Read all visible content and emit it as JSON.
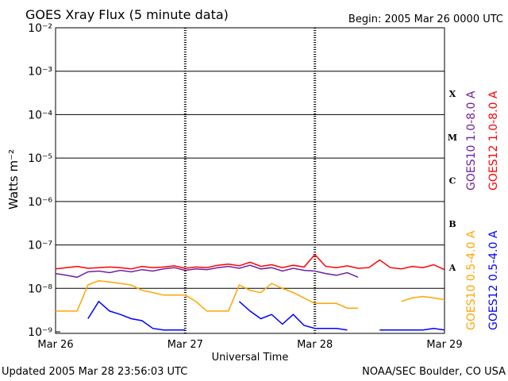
{
  "chart_data": {
    "type": "line",
    "title": "GOES Xray Flux (5 minute data)",
    "subtitle": "Begin:  2005 Mar 26 0000 UTC",
    "x_label": "Universal Time",
    "y_label": "Watts m⁻²",
    "footer_left": "Updated 2005 Mar 28 23:56:03 UTC",
    "footer_right": "NOAA/SEC Boulder, CO USA",
    "log_y": true,
    "grid": true,
    "flare_classes": [
      "A",
      "B",
      "C",
      "M",
      "X"
    ],
    "xlim": [
      0,
      72
    ],
    "xticks": [
      {
        "value": 0,
        "label": "Mar 26"
      },
      {
        "value": 24,
        "label": "Mar 27"
      },
      {
        "value": 48,
        "label": "Mar 28"
      },
      {
        "value": 72,
        "label": "Mar 29"
      }
    ],
    "ylim": [
      1e-09,
      0.01
    ],
    "yticks": [
      {
        "value": 1e-09,
        "label": "10⁻⁹"
      },
      {
        "value": 1e-08,
        "label": "10⁻⁸"
      },
      {
        "value": 1e-07,
        "label": "10⁻⁷"
      },
      {
        "value": 1e-06,
        "label": "10⁻⁶"
      },
      {
        "value": 1e-05,
        "label": "10⁻⁵"
      },
      {
        "value": 0.0001,
        "label": "10⁻⁴"
      },
      {
        "value": 0.001,
        "label": "10⁻³"
      },
      {
        "value": 0.01,
        "label": "10⁻²"
      }
    ],
    "x": [
      0,
      2,
      4,
      6,
      8,
      10,
      12,
      14,
      16,
      18,
      20,
      22,
      24,
      26,
      28,
      30,
      32,
      34,
      36,
      38,
      40,
      42,
      44,
      46,
      48,
      50,
      52,
      54,
      56,
      58,
      60,
      62,
      64,
      66,
      68,
      70,
      72
    ],
    "series": [
      {
        "name": "GOES10 1.0-8.0 A",
        "color": "#7020a0",
        "values": [
          2.2e-08,
          2e-08,
          1.8e-08,
          2.4e-08,
          2.5e-08,
          2.3e-08,
          2.6e-08,
          2.4e-08,
          2.7e-08,
          2.5e-08,
          2.8e-08,
          3e-08,
          2.6e-08,
          2.8e-08,
          2.7e-08,
          3e-08,
          3.2e-08,
          2.9e-08,
          3.4e-08,
          2.8e-08,
          3e-08,
          2.5e-08,
          2.9e-08,
          2.6e-08,
          2.5e-08,
          2.2e-08,
          2e-08,
          2.3e-08,
          1.8e-08,
          null,
          null,
          null,
          null,
          null,
          null,
          null,
          null
        ]
      },
      {
        "name": "GOES12 1.0-8.0 A",
        "color": "#ff0000",
        "values": [
          2.8e-08,
          3e-08,
          3.2e-08,
          2.9e-08,
          3e-08,
          3.1e-08,
          3e-08,
          2.8e-08,
          3.2e-08,
          3e-08,
          3.1e-08,
          3.3e-08,
          2.9e-08,
          3.1e-08,
          3e-08,
          3.4e-08,
          3.6e-08,
          3.3e-08,
          4e-08,
          3.2e-08,
          3.5e-08,
          3e-08,
          3.4e-08,
          3.1e-08,
          6e-08,
          3.2e-08,
          3e-08,
          3.3e-08,
          2.9e-08,
          3e-08,
          4.5e-08,
          3e-08,
          2.8e-08,
          3.2e-08,
          3e-08,
          3.5e-08,
          2.7e-08
        ]
      },
      {
        "name": "GOES10 0.5-4.0 A",
        "color": "#ffa500",
        "values": [
          3e-09,
          3e-09,
          3e-09,
          1.2e-08,
          1.5e-08,
          1.4e-08,
          1.3e-08,
          1.2e-08,
          9e-09,
          8e-09,
          7e-09,
          7e-09,
          7e-09,
          5e-09,
          3e-09,
          3e-09,
          3e-09,
          1.2e-08,
          9e-09,
          8e-09,
          1.3e-08,
          1e-08,
          8e-09,
          6e-09,
          4.5e-09,
          4.5e-09,
          4.5e-09,
          3.5e-09,
          3.5e-09,
          null,
          null,
          null,
          5e-09,
          6e-09,
          6.5e-09,
          6e-09,
          5.5e-09
        ]
      },
      {
        "name": "GOES12 0.5-4.0 A",
        "color": "#0000ff",
        "values": [
          null,
          null,
          null,
          2e-09,
          5e-09,
          3e-09,
          2.5e-09,
          2e-09,
          1.8e-09,
          1.2e-09,
          1.1e-09,
          1.1e-09,
          1.1e-09,
          null,
          null,
          null,
          null,
          5e-09,
          3e-09,
          2e-09,
          2.5e-09,
          1.5e-09,
          2.5e-09,
          1.4e-09,
          1.2e-09,
          1.2e-09,
          1.2e-09,
          1.1e-09,
          null,
          null,
          1.1e-09,
          1.1e-09,
          1.1e-09,
          1.1e-09,
          1.1e-09,
          1.2e-09,
          1.1e-09
        ]
      }
    ]
  }
}
